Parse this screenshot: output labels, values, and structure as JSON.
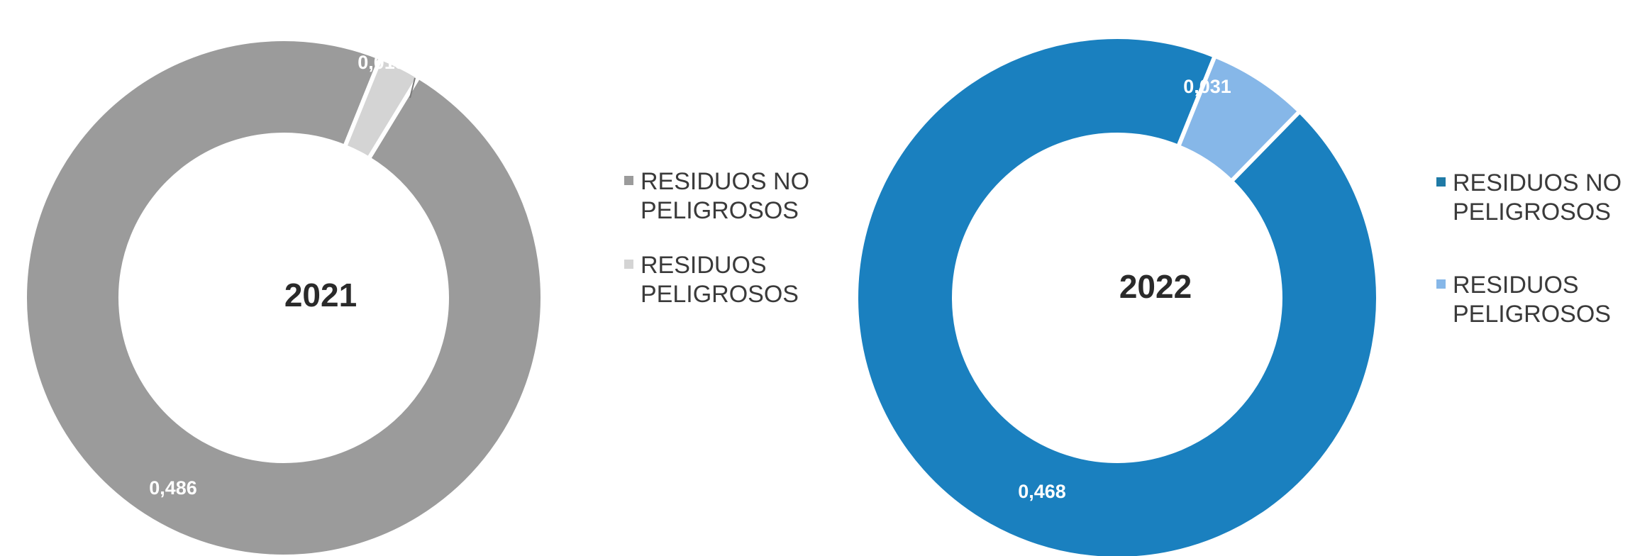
{
  "chart_data": [
    {
      "type": "pie",
      "center_label": "2021",
      "categories": [
        "RESIDUOS NO PELIGROSOS",
        "RESIDUOS PELIGROSOS"
      ],
      "values": [
        0.486,
        0.013
      ],
      "value_labels": [
        "0,486",
        "0,013"
      ],
      "colors": [
        "#9b9b9b",
        "#d4d4d4"
      ],
      "legend": {
        "placement": "right",
        "items": [
          {
            "label": "RESIDUOS NO PELIGROSOS",
            "color": "#9b9b9b"
          },
          {
            "label": "RESIDUOS PELIGROSOS",
            "color": "#d4d4d4"
          }
        ]
      }
    },
    {
      "type": "pie",
      "center_label": "2022",
      "categories": [
        "RESIDUOS NO PELIGROSOS",
        "RESIDUOS PELIGROSOS"
      ],
      "values": [
        0.468,
        0.031
      ],
      "value_labels": [
        "0,468",
        "0,031"
      ],
      "colors": [
        "#1a80bf",
        "#86b7e8"
      ],
      "legend": {
        "placement": "right",
        "items": [
          {
            "label": "RESIDUOS NO PELIGROSOS",
            "color": "#1f7aa6"
          },
          {
            "label": "RESIDUOS PELIGROSOS",
            "color": "#86b7e8"
          }
        ]
      }
    }
  ]
}
